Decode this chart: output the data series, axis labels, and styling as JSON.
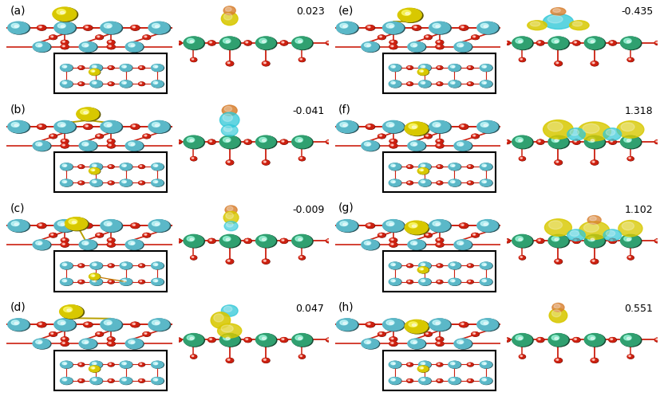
{
  "bg_color": "#ffffff",
  "teal": "#5bb8c8",
  "teal_dark": "#2a8898",
  "red": "#cc2010",
  "yellow": "#d8c800",
  "orange": "#d88030",
  "cyan": "#30c8d8",
  "green": "#30a070",
  "green_dark": "#187850",
  "label_fontsize": 10,
  "value_fontsize": 9,
  "panels": [
    {
      "label": "(a)",
      "value": "0.023",
      "row": 0,
      "col": 0,
      "au_style": "top",
      "density": "a"
    },
    {
      "label": "(b)",
      "value": "-0.041",
      "row": 1,
      "col": 0,
      "au_style": "bridge",
      "density": "b"
    },
    {
      "label": "(c)",
      "value": "-0.009",
      "row": 2,
      "col": 0,
      "au_style": "triangle",
      "density": "c"
    },
    {
      "label": "(d)",
      "value": "0.047",
      "row": 3,
      "col": 0,
      "au_style": "side",
      "density": "d"
    },
    {
      "label": "(e)",
      "value": "-0.435",
      "row": 0,
      "col": 2,
      "au_style": "flat",
      "density": "e"
    },
    {
      "label": "(f)",
      "value": "1.318",
      "row": 1,
      "col": 2,
      "au_style": "flat2",
      "density": "f"
    },
    {
      "label": "(g)",
      "value": "1.102",
      "row": 2,
      "col": 2,
      "au_style": "flat3",
      "density": "g"
    },
    {
      "label": "(h)",
      "value": "0.551",
      "row": 3,
      "col": 2,
      "au_style": "flat4",
      "density": "h"
    }
  ]
}
